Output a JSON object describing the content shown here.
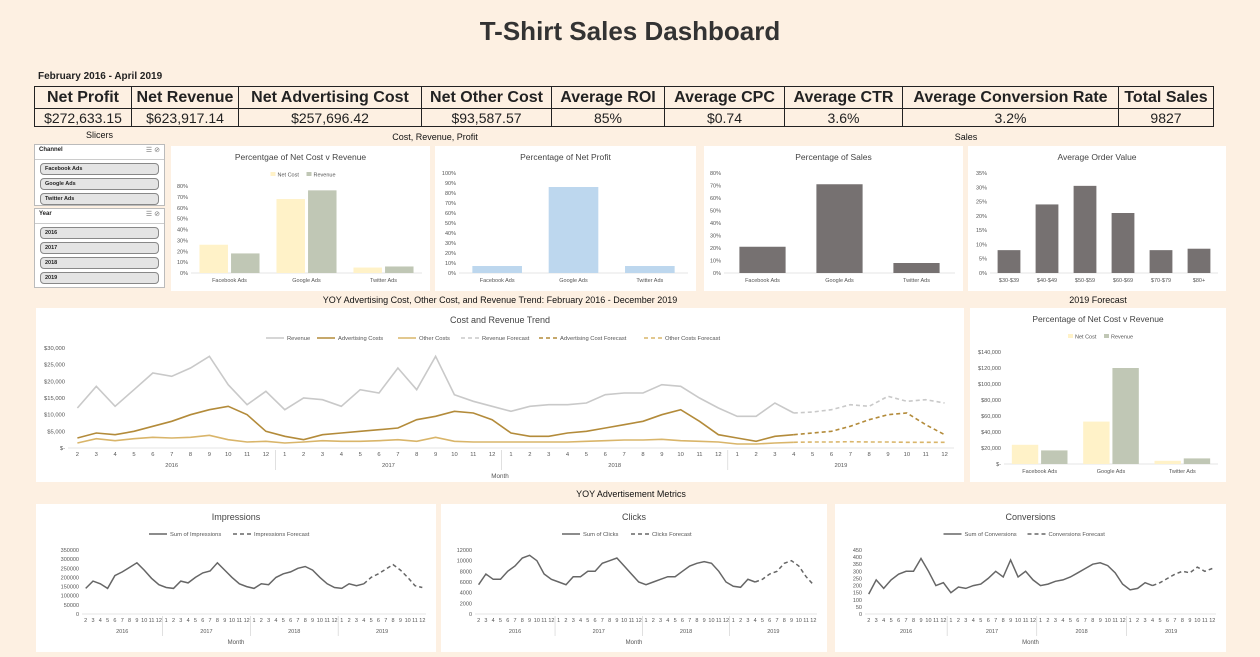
{
  "title": "T-Shirt Sales Dashboard",
  "date_range": "February 2016 - April 2019",
  "kpis": [
    {
      "label": "Net Profit",
      "value": "$272,633.15"
    },
    {
      "label": "Net Revenue",
      "value": "$623,917.14"
    },
    {
      "label": "Net Advertising Cost",
      "value": "$257,696.42"
    },
    {
      "label": "Net Other Cost",
      "value": "$93,587.57"
    },
    {
      "label": "Average ROI",
      "value": "85%"
    },
    {
      "label": "Average CPC",
      "value": "$0.74"
    },
    {
      "label": "Average CTR",
      "value": "3.6%"
    },
    {
      "label": "Average Conversion Rate",
      "value": "3.2%"
    },
    {
      "label": "Total Sales",
      "value": "9827"
    }
  ],
  "sections": {
    "slicers": "Slicers",
    "cost_rev_profit": "Cost, Revenue, Profit",
    "sales": "Sales",
    "yoy_trend": "YOY Advertising Cost, Other Cost, and Revenue Trend: February 2016 - December 2019",
    "forecast_2019": "2019 Forecast",
    "yoy_ad_metrics": "YOY Advertisement Metrics"
  },
  "slicers": {
    "channel": {
      "title": "Channel",
      "items": [
        "Facebook Ads",
        "Google Ads",
        "Twitter Ads"
      ]
    },
    "year": {
      "title": "Year",
      "items": [
        "2016",
        "2017",
        "2018",
        "2019"
      ]
    }
  },
  "colors": {
    "background": "#fdf0e2",
    "net_cost": "#fff2c8",
    "revenue_bar": "#c0c7b5",
    "profit_bar": "#bdd7ee",
    "sales_bar": "#767171",
    "revenue_line": "#c9c9c9",
    "advertising_line": "#b38b3a",
    "other_line": "#d9b56a",
    "metric_line": "#666666"
  },
  "chart_data": [
    {
      "id": "net_cost_v_revenue",
      "type": "bar",
      "title": "Percentgae of Net Cost v Revenue",
      "categories": [
        "Facebook Ads",
        "Google Ads",
        "Twitter Ads"
      ],
      "series": [
        {
          "name": "Net Cost",
          "values": [
            26,
            68,
            5
          ]
        },
        {
          "name": "Revenue",
          "values": [
            18,
            76,
            6
          ]
        }
      ],
      "yticks": [
        "0%",
        "10%",
        "20%",
        "30%",
        "40%",
        "50%",
        "60%",
        "70%",
        "80%"
      ],
      "ylim": [
        0,
        80
      ],
      "legend": "top"
    },
    {
      "id": "net_profit_pct",
      "type": "bar",
      "title": "Percentage of Net Profit",
      "categories": [
        "Facebook Ads",
        "Google Ads",
        "Twitter Ads"
      ],
      "series": [
        {
          "values": [
            7,
            86,
            7
          ]
        }
      ],
      "yticks": [
        "0%",
        "10%",
        "20%",
        "30%",
        "40%",
        "50%",
        "60%",
        "70%",
        "80%",
        "90%",
        "100%"
      ],
      "ylim": [
        0,
        100
      ]
    },
    {
      "id": "sales_pct",
      "type": "bar",
      "title": "Percentage of Sales",
      "categories": [
        "Facebook Ads",
        "Google Ads",
        "Twitter Ads"
      ],
      "series": [
        {
          "values": [
            21,
            71,
            8
          ]
        }
      ],
      "yticks": [
        "0%",
        "10%",
        "20%",
        "30%",
        "40%",
        "50%",
        "60%",
        "70%",
        "80%"
      ],
      "ylim": [
        0,
        80
      ]
    },
    {
      "id": "avg_order_value",
      "type": "bar",
      "title": "Average Order Value",
      "categories": [
        "$30-$39",
        "$40-$49",
        "$50-$59",
        "$60-$69",
        "$70-$79",
        "$80+"
      ],
      "series": [
        {
          "values": [
            8,
            24,
            30.5,
            21,
            8,
            8.5
          ]
        }
      ],
      "yticks": [
        "0%",
        "5%",
        "10%",
        "15%",
        "20%",
        "25%",
        "30%",
        "35%"
      ],
      "ylim": [
        0,
        35
      ]
    },
    {
      "id": "cost_revenue_trend",
      "type": "line",
      "title": "Cost and Revenue Trend",
      "xlabel": "Month",
      "months": [
        "2",
        "3",
        "4",
        "5",
        "6",
        "7",
        "8",
        "9",
        "10",
        "11",
        "12",
        "1",
        "2",
        "3",
        "4",
        "5",
        "6",
        "7",
        "8",
        "9",
        "10",
        "11",
        "12",
        "1",
        "2",
        "3",
        "4",
        "5",
        "6",
        "7",
        "8",
        "9",
        "10",
        "11",
        "12",
        "1",
        "2",
        "3",
        "4",
        "5",
        "6",
        "7",
        "8",
        "9",
        "10",
        "11",
        "12"
      ],
      "years": [
        {
          "label": "2016",
          "span": 11
        },
        {
          "label": "2017",
          "span": 12
        },
        {
          "label": "2018",
          "span": 12
        },
        {
          "label": "2019",
          "span": 12
        }
      ],
      "yticks": [
        "$-",
        "$5,000",
        "$10,000",
        "$15,000",
        "$20,000",
        "$25,000",
        "$30,000"
      ],
      "ylim": [
        0,
        30000
      ],
      "forecast_start_index": 38,
      "series": [
        {
          "name": "Revenue",
          "values": [
            12000,
            18500,
            12500,
            17500,
            22500,
            21500,
            24000,
            27500,
            19000,
            13000,
            17000,
            11500,
            15000,
            14500,
            12500,
            17500,
            16500,
            24000,
            17500,
            27500,
            16000,
            14000,
            12500,
            11000,
            12500,
            13000,
            13000,
            13500,
            16000,
            16500,
            16500,
            19000,
            18500,
            15000,
            12000,
            9500,
            9500,
            13500,
            10500,
            10800,
            11500,
            13000,
            12500,
            15500,
            14000,
            14500,
            13500
          ]
        },
        {
          "name": "Advertising Costs",
          "values": [
            3000,
            4500,
            4000,
            5000,
            6500,
            8000,
            10000,
            11500,
            12500,
            10000,
            5000,
            3500,
            2500,
            4000,
            4500,
            5000,
            5500,
            6000,
            8500,
            9500,
            11000,
            10500,
            8500,
            4500,
            3500,
            3500,
            4500,
            5000,
            6000,
            7000,
            8000,
            10000,
            11500,
            8000,
            4000,
            3000,
            2000,
            3500,
            4000,
            4500,
            5000,
            6500,
            8500,
            10000,
            10500,
            7000,
            4000
          ]
        },
        {
          "name": "Other Costs",
          "values": [
            1500,
            2800,
            2200,
            2800,
            3200,
            3000,
            3200,
            3800,
            2500,
            1800,
            2000,
            1500,
            1800,
            2200,
            2000,
            2000,
            2200,
            2500,
            2000,
            3200,
            2000,
            1800,
            1800,
            1800,
            1800,
            1800,
            1800,
            2000,
            2200,
            2400,
            2400,
            2600,
            2200,
            2000,
            1800,
            1200,
            1200,
            1500,
            1700,
            1800,
            1800,
            1900,
            1800,
            1800,
            1700,
            1700,
            1700
          ]
        },
        {
          "name": "Revenue Forecast",
          "dashed": true
        },
        {
          "name": "Advertising Cost Forecast",
          "dashed": true
        },
        {
          "name": "Other Costs Forecast",
          "dashed": true
        }
      ]
    },
    {
      "id": "forecast_net_cost_v_revenue",
      "type": "bar",
      "title": "Percentage of Net Cost v Revenue",
      "categories": [
        "Facebook Ads",
        "Google Ads",
        "Twitter Ads"
      ],
      "series": [
        {
          "name": "Net Cost",
          "values": [
            24000,
            53000,
            4000
          ]
        },
        {
          "name": "Revenue",
          "values": [
            17000,
            120000,
            7000
          ]
        }
      ],
      "yticks": [
        "$-",
        "$20,000",
        "$40,000",
        "$60,000",
        "$80,000",
        "$100,000",
        "$120,000",
        "$140,000"
      ],
      "ylim": [
        0,
        140000
      ],
      "legend": "top"
    },
    {
      "id": "impressions",
      "type": "line",
      "title": "Impressions",
      "xlabel": "Month",
      "months": [
        "2",
        "3",
        "4",
        "5",
        "6",
        "7",
        "8",
        "9",
        "10",
        "11",
        "12",
        "1",
        "2",
        "3",
        "4",
        "5",
        "6",
        "7",
        "8",
        "9",
        "10",
        "11",
        "12",
        "1",
        "2",
        "3",
        "4",
        "5",
        "6",
        "7",
        "8",
        "9",
        "10",
        "11",
        "12",
        "1",
        "2",
        "3",
        "4",
        "5",
        "6",
        "7",
        "8",
        "9",
        "10",
        "11",
        "12"
      ],
      "years": [
        {
          "label": "2016",
          "span": 11
        },
        {
          "label": "2017",
          "span": 12
        },
        {
          "label": "2018",
          "span": 12
        },
        {
          "label": "2019",
          "span": 12
        }
      ],
      "yticks": [
        "0",
        "50000",
        "100000",
        "150000",
        "200000",
        "250000",
        "300000",
        "350000"
      ],
      "ylim": [
        0,
        350000
      ],
      "forecast_start_index": 38,
      "series": [
        {
          "name": "Sum of Impressions",
          "values": [
            140000,
            180000,
            165000,
            140000,
            210000,
            230000,
            255000,
            280000,
            240000,
            195000,
            160000,
            145000,
            140000,
            180000,
            170000,
            200000,
            225000,
            235000,
            280000,
            240000,
            200000,
            165000,
            150000,
            140000,
            165000,
            160000,
            200000,
            220000,
            230000,
            250000,
            260000,
            240000,
            200000,
            165000,
            145000,
            140000,
            165000,
            155000,
            165000,
            200000,
            220000,
            245000,
            270000,
            240000,
            200000,
            155000,
            145000
          ]
        },
        {
          "name": "Impressions Forecast",
          "dashed": true
        }
      ]
    },
    {
      "id": "clicks",
      "type": "line",
      "title": "Clicks",
      "xlabel": "Month",
      "months": [
        "2",
        "3",
        "4",
        "5",
        "6",
        "7",
        "8",
        "9",
        "10",
        "11",
        "12",
        "1",
        "2",
        "3",
        "4",
        "5",
        "6",
        "7",
        "8",
        "9",
        "10",
        "11",
        "12",
        "1",
        "2",
        "3",
        "4",
        "5",
        "6",
        "7",
        "8",
        "9",
        "10",
        "11",
        "12",
        "1",
        "2",
        "3",
        "4",
        "5",
        "6",
        "7",
        "8",
        "9",
        "10",
        "11",
        "12"
      ],
      "years": [
        {
          "label": "2016",
          "span": 11
        },
        {
          "label": "2017",
          "span": 12
        },
        {
          "label": "2018",
          "span": 12
        },
        {
          "label": "2019",
          "span": 12
        }
      ],
      "yticks": [
        "0",
        "2000",
        "4000",
        "6000",
        "8000",
        "10000",
        "12000"
      ],
      "ylim": [
        0,
        12000
      ],
      "forecast_start_index": 38,
      "series": [
        {
          "name": "Sum of Clicks",
          "values": [
            5500,
            7500,
            6500,
            6500,
            8000,
            9000,
            10500,
            11000,
            10000,
            7500,
            6500,
            6000,
            5500,
            7000,
            7000,
            8000,
            8000,
            9500,
            10000,
            10500,
            9000,
            7500,
            6000,
            5500,
            6000,
            6500,
            7000,
            7000,
            8000,
            9000,
            9500,
            9800,
            9500,
            8000,
            6000,
            5200,
            5000,
            6500,
            6000,
            6500,
            7500,
            8000,
            9500,
            10000,
            9000,
            7000,
            5500
          ]
        },
        {
          "name": "Clicks Forecast",
          "dashed": true
        }
      ]
    },
    {
      "id": "conversions",
      "type": "line",
      "title": "Conversions",
      "xlabel": "Month",
      "months": [
        "2",
        "3",
        "4",
        "5",
        "6",
        "7",
        "8",
        "9",
        "10",
        "11",
        "12",
        "1",
        "2",
        "3",
        "4",
        "5",
        "6",
        "7",
        "8",
        "9",
        "10",
        "11",
        "12",
        "1",
        "2",
        "3",
        "4",
        "5",
        "6",
        "7",
        "8",
        "9",
        "10",
        "11",
        "12",
        "1",
        "2",
        "3",
        "4",
        "5",
        "6",
        "7",
        "8",
        "9",
        "10",
        "11",
        "12"
      ],
      "years": [
        {
          "label": "2016",
          "span": 11
        },
        {
          "label": "2017",
          "span": 12
        },
        {
          "label": "2018",
          "span": 12
        },
        {
          "label": "2019",
          "span": 12
        }
      ],
      "yticks": [
        "0",
        "50",
        "100",
        "150",
        "200",
        "250",
        "300",
        "350",
        "400",
        "450"
      ],
      "ylim": [
        0,
        450
      ],
      "forecast_start_index": 38,
      "series": [
        {
          "name": "Sum of Conversions",
          "values": [
            140,
            240,
            180,
            240,
            280,
            300,
            300,
            390,
            300,
            200,
            220,
            150,
            190,
            180,
            200,
            210,
            250,
            300,
            260,
            380,
            260,
            300,
            240,
            200,
            210,
            230,
            240,
            260,
            290,
            320,
            350,
            360,
            340,
            290,
            210,
            170,
            180,
            220,
            200,
            220,
            250,
            280,
            300,
            290,
            330,
            300,
            320
          ]
        },
        {
          "name": "Conversions Forecast",
          "dashed": true
        }
      ]
    }
  ]
}
